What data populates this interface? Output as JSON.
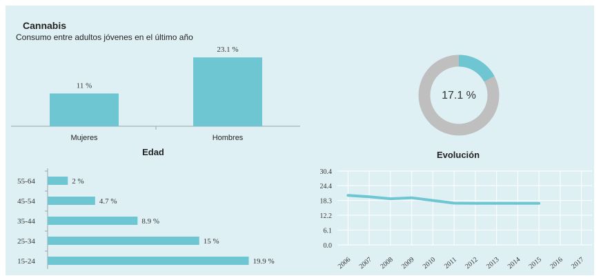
{
  "header": {
    "title": "Cannabis",
    "subtitle": "Consumo entre adultos jóvenes en el último año"
  },
  "colors": {
    "panel_bg": "#dff0f5",
    "bar": "#6ec6d3",
    "donut_track": "#bfbfbf",
    "axis": "#9aa4a8",
    "grid": "#ffffff"
  },
  "chart_data": [
    {
      "id": "sexo",
      "type": "bar",
      "categories": [
        "Mujeres",
        "Hombres"
      ],
      "values": [
        11,
        23.1
      ],
      "value_labels": [
        "11 %",
        "23.1 %"
      ],
      "ylim": [
        0,
        25
      ]
    },
    {
      "id": "total",
      "type": "pie",
      "values": [
        17.1
      ],
      "center_label": "17.1 %"
    },
    {
      "id": "edad",
      "type": "bar",
      "orientation": "horizontal",
      "title": "Edad",
      "categories": [
        "55-64",
        "45-54",
        "35-44",
        "25-34",
        "15-24"
      ],
      "values": [
        2,
        4.7,
        8.9,
        15,
        19.9
      ],
      "value_labels": [
        "2 %",
        "4.7 %",
        "8.9 %",
        "15 %",
        "19.9 %"
      ],
      "xlim": [
        0,
        20
      ]
    },
    {
      "id": "evolucion",
      "type": "line",
      "title": "Evolución",
      "x": [
        "2006",
        "2007",
        "2008",
        "2009",
        "2010",
        "2011",
        "2012",
        "2013",
        "2014",
        "2015",
        "2016",
        "2017"
      ],
      "series": [
        {
          "values": [
            20.4,
            19.8,
            19.0,
            19.4,
            18.3,
            17.2,
            17.1,
            17.1,
            17.1,
            17.1,
            null,
            null
          ]
        }
      ],
      "yticks": [
        "0.0",
        "6.1",
        "12.2",
        "18.3",
        "24.4",
        "30.4"
      ],
      "ylim": [
        0,
        30.4
      ],
      "grid": true
    }
  ]
}
